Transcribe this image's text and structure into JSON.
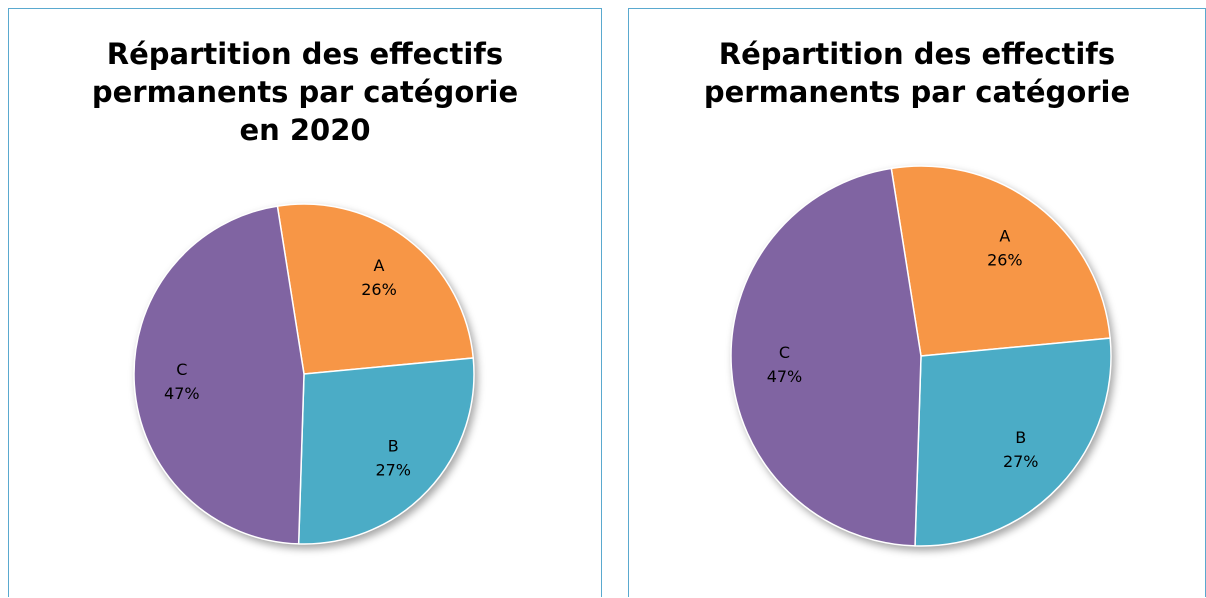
{
  "chart_data": [
    {
      "type": "pie",
      "title": "Répartition des effectifs permanents par catégorie en 2020",
      "categories": [
        "A",
        "B",
        "C"
      ],
      "values": [
        26,
        27,
        47
      ],
      "value_labels": [
        "26%",
        "27%",
        "47%"
      ],
      "colors": [
        "#f79646",
        "#4bacc6",
        "#8064a2"
      ]
    },
    {
      "type": "pie",
      "title": "Répartition des effectifs permanents par catégorie",
      "categories": [
        "A",
        "B",
        "C"
      ],
      "values": [
        26,
        27,
        47
      ],
      "value_labels": [
        "26%",
        "27%",
        "47%"
      ],
      "colors": [
        "#f79646",
        "#4bacc6",
        "#8064a2"
      ]
    }
  ]
}
